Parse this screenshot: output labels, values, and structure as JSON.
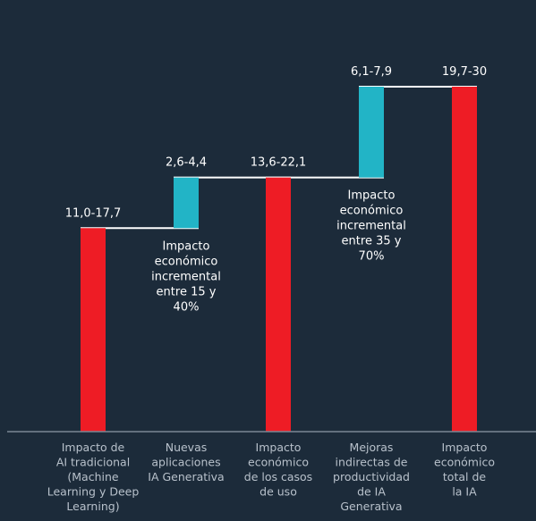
{
  "colors": {
    "background": "#1c2b3a",
    "total_bar": "#ee1c25",
    "increment_bar": "#22b4c6",
    "connector": "#ffffff",
    "axis": "#7b8794",
    "category_text": "#b8c1cb",
    "label_text": "#ffffff"
  },
  "chart_data": {
    "type": "bar",
    "subtype": "waterfall",
    "title": "",
    "xlabel": "",
    "ylabel": "",
    "ylim": [
      0,
      30
    ],
    "grid": false,
    "legend": "none",
    "categories": [
      "Impacto de AI tradicional (Machine Learning y Deep Learning)",
      "Nuevas aplicaciones IA Generativa",
      "Impacto económico de los casos de uso",
      "Mejoras indirectas de productividad de IA Generativa",
      "Impacto económico total de la IA"
    ],
    "category_lines": [
      [
        "Impacto de",
        "AI tradicional",
        "(Machine",
        "Learning y Deep",
        "Learning)"
      ],
      [
        "Nuevas",
        "aplicaciones",
        "IA Generativa"
      ],
      [
        "Impacto",
        "económico",
        "de los casos",
        "de uso"
      ],
      [
        "Mejoras",
        "indirectas de",
        "productividad",
        "de IA",
        "Generativa"
      ],
      [
        "Impacto",
        "económico",
        "total de",
        "la IA"
      ]
    ],
    "bars": [
      {
        "kind": "total",
        "base": 0,
        "top": 17.7,
        "label": "11,0-17,7"
      },
      {
        "kind": "increment",
        "base": 17.7,
        "top": 22.1,
        "label": "2,6-4,4"
      },
      {
        "kind": "total",
        "base": 0,
        "top": 22.1,
        "label": "13,6-22,1"
      },
      {
        "kind": "increment",
        "base": 22.1,
        "top": 30,
        "label": "6,1-7,9"
      },
      {
        "kind": "total",
        "base": 0,
        "top": 30,
        "label": "19,7-30"
      }
    ],
    "annotations": [
      {
        "after_bar": 1,
        "lines": [
          "Impacto",
          "económico",
          "incremental",
          "entre 15 y",
          "40%"
        ]
      },
      {
        "after_bar": 3,
        "lines": [
          "Impacto",
          "económico",
          "incremental",
          "entre 35 y",
          "70%"
        ]
      }
    ]
  }
}
